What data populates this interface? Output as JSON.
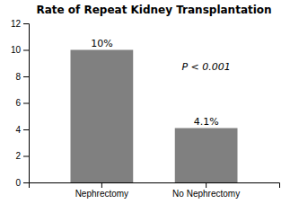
{
  "chart_data": {
    "type": "bar",
    "title": "Rate of Repeat Kidney Transplantation",
    "categories": [
      "Nephrectomy",
      "No Nephrectomy"
    ],
    "values": [
      10.0,
      4.1
    ],
    "value_labels": [
      "10%",
      "4.1%"
    ],
    "data_labels": true,
    "color": "#808080",
    "ylim": [
      0,
      12
    ],
    "yticks": [
      0,
      2,
      4,
      6,
      8,
      10,
      12
    ],
    "grid": false,
    "annotation": "P < 0.001"
  }
}
